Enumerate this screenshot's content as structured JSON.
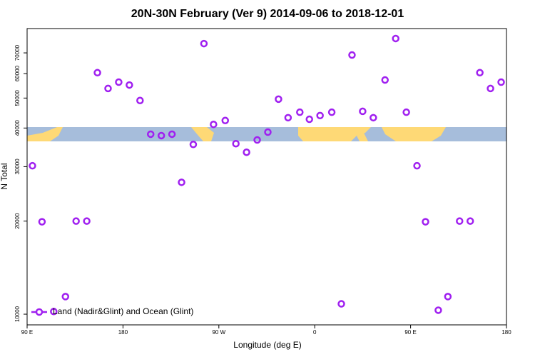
{
  "chart_data": {
    "type": "scatter",
    "title": "20N-30N February (Ver 9)   2014-09-06 to 2018-12-01",
    "x_label": "Longitude (deg E)",
    "y_label": "N Total",
    "log_y": true,
    "xlim": [
      90,
      540
    ],
    "xticks": [
      {
        "value": 90,
        "label": "90 E"
      },
      {
        "value": 180,
        "label": "180"
      },
      {
        "value": 270,
        "label": "90 W"
      },
      {
        "value": 360,
        "label": "0"
      },
      {
        "value": 450,
        "label": "90 E"
      },
      {
        "value": 540,
        "label": "180"
      }
    ],
    "ylim": [
      9235,
      83900
    ],
    "yticks": [
      10000,
      20000,
      30000,
      40000,
      50000,
      60000,
      70000
    ],
    "legend": "bottom-left",
    "series": [
      {
        "name": "Land (Nadir&Glint) and Ocean (Glint)",
        "color": "#a020f0",
        "x": [
          95,
          104,
          115,
          126,
          136,
          146,
          156,
          166,
          176,
          186,
          196,
          206,
          216,
          226,
          235,
          246,
          256,
          265,
          276,
          286,
          296,
          306,
          316,
          326,
          335,
          346,
          355,
          365,
          376,
          385,
          395,
          405,
          415,
          426,
          436,
          446,
          456,
          464,
          476,
          485,
          496,
          506,
          515,
          525,
          535
        ],
        "values": [
          30200,
          19900,
          10200,
          11400,
          20000,
          20000,
          60400,
          53700,
          56300,
          55100,
          49100,
          38200,
          37800,
          38200,
          26700,
          35400,
          75000,
          41100,
          42300,
          35600,
          33400,
          36600,
          38800,
          49600,
          43200,
          45000,
          42700,
          43900,
          45000,
          10800,
          68900,
          45300,
          43200,
          57200,
          77900,
          45000,
          30200,
          19900,
          10300,
          11400,
          20000,
          20000,
          60400,
          53700,
          56300
        ]
      }
    ]
  }
}
